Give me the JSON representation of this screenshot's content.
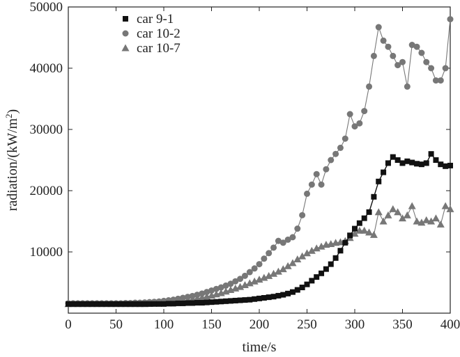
{
  "chart_data": {
    "type": "line",
    "xlabel": "time/s",
    "ylabel": "radiation/(kW/m",
    "ylabel_sup": "2",
    "ylabel_close": ")",
    "xlim": [
      0,
      400
    ],
    "ylim": [
      0,
      50000
    ],
    "x_ticks": [
      0,
      50,
      100,
      150,
      200,
      250,
      300,
      350,
      400
    ],
    "y_ticks": [
      10000,
      20000,
      30000,
      40000,
      50000
    ],
    "legend_position": "top-left",
    "grid": false,
    "series": [
      {
        "name": "car 9-1",
        "marker": "square",
        "color": "#111111",
        "x": [
          0,
          5,
          10,
          15,
          20,
          25,
          30,
          35,
          40,
          45,
          50,
          55,
          60,
          65,
          70,
          75,
          80,
          85,
          90,
          95,
          100,
          105,
          110,
          115,
          120,
          125,
          130,
          135,
          140,
          145,
          150,
          155,
          160,
          165,
          170,
          175,
          180,
          185,
          190,
          195,
          200,
          205,
          210,
          215,
          220,
          225,
          230,
          235,
          240,
          245,
          250,
          255,
          260,
          265,
          270,
          275,
          280,
          285,
          290,
          295,
          300,
          305,
          310,
          315,
          320,
          325,
          330,
          335,
          340,
          345,
          350,
          355,
          360,
          365,
          370,
          375,
          380,
          385,
          390,
          395,
          400
        ],
        "y": [
          1500,
          1500,
          1500,
          1500,
          1500,
          1500,
          1500,
          1500,
          1500,
          1500,
          1500,
          1500,
          1500,
          1500,
          1500,
          1500,
          1500,
          1500,
          1500,
          1500,
          1500,
          1550,
          1550,
          1600,
          1600,
          1650,
          1650,
          1700,
          1700,
          1750,
          1800,
          1850,
          1900,
          1950,
          2000,
          2050,
          2100,
          2150,
          2200,
          2300,
          2400,
          2500,
          2600,
          2700,
          2850,
          3000,
          3200,
          3450,
          3800,
          4200,
          4700,
          5300,
          5900,
          6500,
          7200,
          8000,
          9000,
          10200,
          11500,
          12700,
          13800,
          14700,
          15500,
          16500,
          19000,
          21500,
          23000,
          24500,
          25500,
          25000,
          24500,
          24800,
          24600,
          24400,
          24300,
          24500,
          26000,
          25000,
          24300,
          24000,
          24100
        ]
      },
      {
        "name": "car 10-2",
        "marker": "circle",
        "color": "#777777",
        "x": [
          0,
          5,
          10,
          15,
          20,
          25,
          30,
          35,
          40,
          45,
          50,
          55,
          60,
          65,
          70,
          75,
          80,
          85,
          90,
          95,
          100,
          105,
          110,
          115,
          120,
          125,
          130,
          135,
          140,
          145,
          150,
          155,
          160,
          165,
          170,
          175,
          180,
          185,
          190,
          195,
          200,
          205,
          210,
          215,
          220,
          225,
          230,
          235,
          240,
          245,
          250,
          255,
          260,
          265,
          270,
          275,
          280,
          285,
          290,
          295,
          300,
          305,
          310,
          315,
          320,
          325,
          330,
          335,
          340,
          345,
          350,
          355,
          360,
          365,
          370,
          375,
          380,
          385,
          390,
          395,
          400
        ],
        "y": [
          1600,
          1600,
          1600,
          1600,
          1600,
          1600,
          1600,
          1600,
          1600,
          1600,
          1600,
          1600,
          1650,
          1650,
          1700,
          1700,
          1750,
          1800,
          1850,
          1900,
          2000,
          2100,
          2200,
          2350,
          2500,
          2650,
          2800,
          3000,
          3200,
          3450,
          3700,
          3950,
          4200,
          4500,
          4800,
          5200,
          5600,
          6100,
          6700,
          7300,
          8000,
          8900,
          9800,
          10700,
          11800,
          11500,
          12000,
          12400,
          13800,
          16000,
          19500,
          21000,
          22700,
          21000,
          23500,
          25000,
          26000,
          27000,
          28500,
          32500,
          30500,
          31000,
          33000,
          37000,
          42000,
          46700,
          44500,
          43500,
          42000,
          40500,
          41000,
          37000,
          43800,
          43500,
          42500,
          41000,
          40000,
          38000,
          38000,
          40000,
          48000
        ]
      },
      {
        "name": "car 10-7",
        "marker": "triangle",
        "color": "#777777",
        "x": [
          0,
          5,
          10,
          15,
          20,
          25,
          30,
          35,
          40,
          45,
          50,
          55,
          60,
          65,
          70,
          75,
          80,
          85,
          90,
          95,
          100,
          105,
          110,
          115,
          120,
          125,
          130,
          135,
          140,
          145,
          150,
          155,
          160,
          165,
          170,
          175,
          180,
          185,
          190,
          195,
          200,
          205,
          210,
          215,
          220,
          225,
          230,
          235,
          240,
          245,
          250,
          255,
          260,
          265,
          270,
          275,
          280,
          285,
          290,
          295,
          300,
          305,
          310,
          315,
          320,
          325,
          330,
          335,
          340,
          345,
          350,
          355,
          360,
          365,
          370,
          375,
          380,
          385,
          390,
          395,
          400
        ],
        "y": [
          1500,
          1500,
          1500,
          1500,
          1500,
          1500,
          1500,
          1500,
          1500,
          1500,
          1500,
          1500,
          1500,
          1500,
          1500,
          1500,
          1500,
          1550,
          1600,
          1650,
          1700,
          1750,
          1800,
          1900,
          2000,
          2100,
          2250,
          2400,
          2550,
          2700,
          2900,
          3100,
          3300,
          3550,
          3800,
          4050,
          4300,
          4600,
          4900,
          5200,
          5500,
          5800,
          6100,
          6450,
          6800,
          7200,
          7700,
          8200,
          8800,
          9300,
          9800,
          10200,
          10600,
          10900,
          11200,
          11300,
          11500,
          11600,
          11800,
          12300,
          13000,
          13500,
          13500,
          13200,
          12800,
          16500,
          15000,
          16000,
          17000,
          16500,
          15500,
          16000,
          17500,
          15000,
          14800,
          15200,
          15000,
          15500,
          14500,
          17500,
          17000
        ]
      }
    ]
  }
}
